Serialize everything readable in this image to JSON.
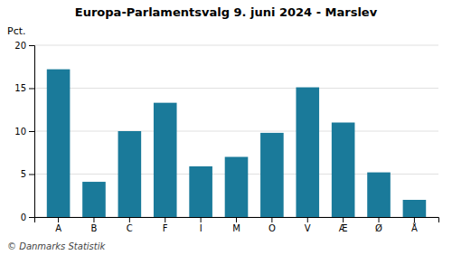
{
  "chart_data": {
    "type": "bar",
    "title": "Europa-Parlamentsvalg 9. juni 2024 - Marslev",
    "categories": [
      "A",
      "B",
      "C",
      "F",
      "I",
      "M",
      "O",
      "V",
      "Æ",
      "Ø",
      "Å"
    ],
    "values": [
      17.2,
      4.1,
      10.0,
      13.3,
      5.9,
      7.0,
      9.8,
      15.1,
      11.0,
      5.2,
      2.0
    ],
    "color": "#1a7a9a",
    "ylabel": "Pct.",
    "ylim": [
      0,
      20
    ],
    "yticks": [
      0,
      5,
      10,
      15,
      20
    ],
    "grid": true,
    "annotations": [
      "© Danmarks Statistik"
    ]
  }
}
